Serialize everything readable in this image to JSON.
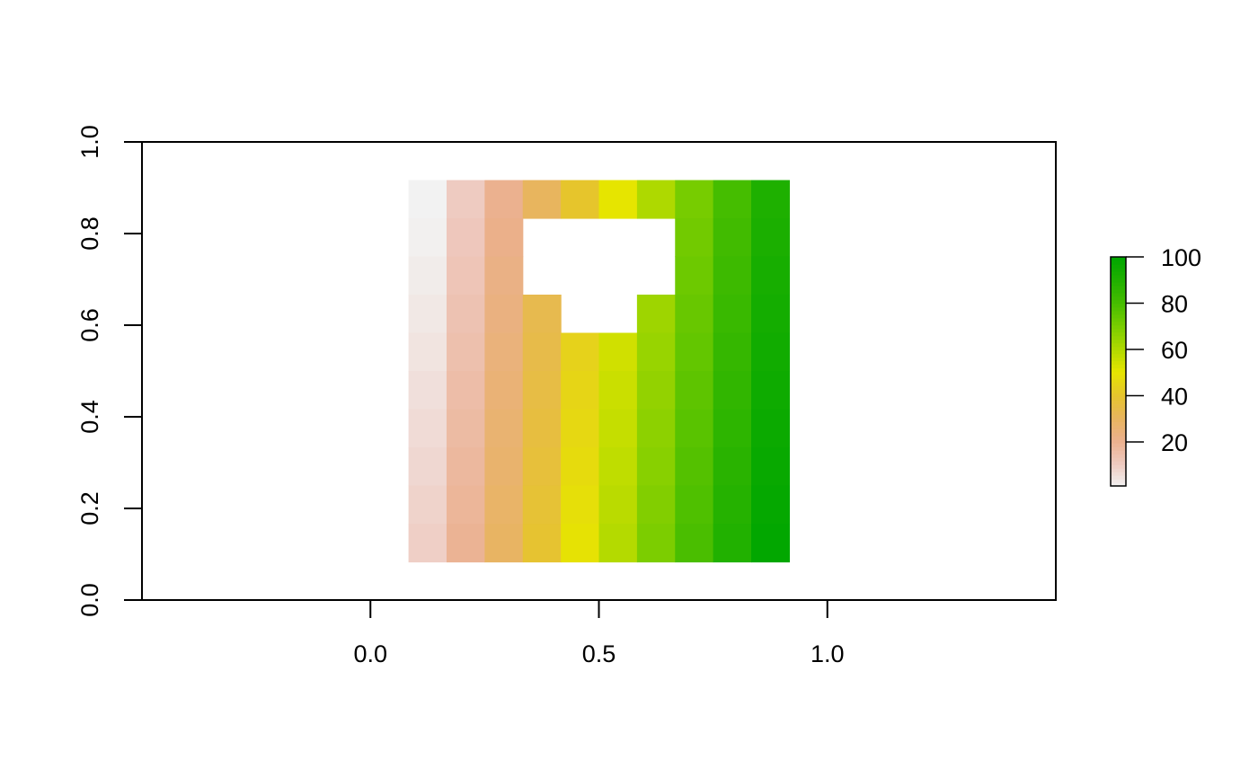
{
  "chart_data": {
    "type": "heatmap",
    "title": "",
    "xlabel": "",
    "ylabel": "",
    "xlim": [
      -0.5,
      1.5
    ],
    "ylim": [
      0,
      1
    ],
    "x_ticks": [
      "0.0",
      "0.5",
      "1.0"
    ],
    "x_tick_values": [
      0,
      0.5,
      1
    ],
    "y_ticks": [
      "0.0",
      "0.2",
      "0.4",
      "0.6",
      "0.8",
      "1.0"
    ],
    "y_tick_values": [
      0,
      0.2,
      0.4,
      0.6,
      0.8,
      1
    ],
    "grid": false,
    "raster": {
      "xmin": 0.0833,
      "xmax": 0.9167,
      "ymin": 0.0833,
      "ymax": 0.9167,
      "ncol": 10,
      "nrow": 10,
      "column_values": [
        5,
        15,
        25,
        35,
        45,
        55,
        65,
        75,
        85,
        95
      ],
      "row_values": [
        -4.5,
        -3.5,
        -2.5,
        -1.5,
        -0.5,
        0.5,
        1.5,
        2.5,
        3.5,
        4.5
      ],
      "missing_cells": [
        [
          3,
          1
        ],
        [
          4,
          1
        ],
        [
          5,
          1
        ],
        [
          6,
          1
        ],
        [
          3,
          2
        ],
        [
          4,
          2
        ],
        [
          5,
          2
        ],
        [
          6,
          2
        ],
        [
          4,
          3
        ],
        [
          5,
          3
        ]
      ]
    },
    "legend": {
      "position": "right",
      "min": 1,
      "max": 100,
      "ticks": [
        "20",
        "40",
        "60",
        "80",
        "100"
      ],
      "tick_values": [
        20,
        40,
        60,
        80,
        100
      ],
      "palette": [
        "#f2f2f2",
        "#eec9bf",
        "#ebb08d",
        "#e8b55d",
        "#e6c52c",
        "#e6e500",
        "#afd900",
        "#78cc00",
        "#46bd00",
        "#1fb000",
        "#00a600"
      ]
    }
  }
}
